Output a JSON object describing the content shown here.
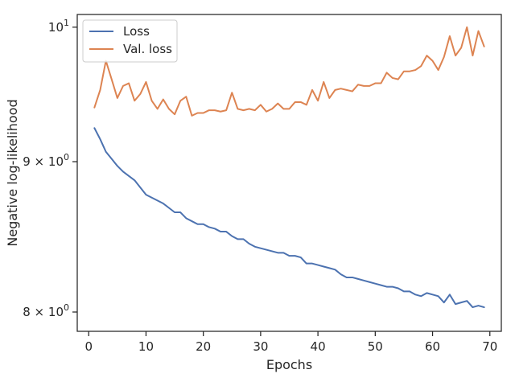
{
  "chart_data": {
    "type": "line",
    "xlabel": "Epochs",
    "ylabel": "Negative log-likelihood",
    "xlim": [
      -2,
      72
    ],
    "ylim": [
      7.88,
      10.1
    ],
    "yscale": "log",
    "x_ticks": [
      0,
      10,
      20,
      30,
      40,
      50,
      60,
      70
    ],
    "y_ticks": [
      {
        "value": 8,
        "mantissa": "8",
        "exponent": "0"
      },
      {
        "value": 9,
        "mantissa": "9",
        "exponent": "0"
      },
      {
        "value": 10,
        "mantissa": "10",
        "exponent": "1"
      }
    ],
    "grid": false,
    "legend_position": "top-left",
    "x": [
      1,
      2,
      3,
      4,
      5,
      6,
      7,
      8,
      9,
      10,
      11,
      12,
      13,
      14,
      15,
      16,
      17,
      18,
      19,
      20,
      21,
      22,
      23,
      24,
      25,
      26,
      27,
      28,
      29,
      30,
      31,
      32,
      33,
      34,
      35,
      36,
      37,
      38,
      39,
      40,
      41,
      42,
      43,
      44,
      45,
      46,
      47,
      48,
      49,
      50,
      51,
      52,
      53,
      54,
      55,
      56,
      57,
      58,
      59,
      60,
      61,
      62,
      63,
      64,
      65,
      66,
      67,
      68,
      69
    ],
    "series": [
      {
        "name": "Loss",
        "color": "#4c72b0",
        "values": [
          9.24,
          9.16,
          9.07,
          9.02,
          8.97,
          8.93,
          8.9,
          8.87,
          8.82,
          8.77,
          8.75,
          8.73,
          8.71,
          8.68,
          8.65,
          8.65,
          8.61,
          8.59,
          8.57,
          8.57,
          8.55,
          8.54,
          8.52,
          8.52,
          8.49,
          8.47,
          8.47,
          8.44,
          8.42,
          8.41,
          8.4,
          8.39,
          8.38,
          8.38,
          8.36,
          8.36,
          8.35,
          8.31,
          8.31,
          8.3,
          8.29,
          8.28,
          8.27,
          8.24,
          8.22,
          8.22,
          8.21,
          8.2,
          8.19,
          8.18,
          8.17,
          8.16,
          8.16,
          8.15,
          8.13,
          8.13,
          8.11,
          8.1,
          8.12,
          8.11,
          8.1,
          8.06,
          8.11,
          8.05,
          8.06,
          8.07,
          8.03,
          8.04,
          8.03
        ]
      },
      {
        "name": "Val. loss",
        "color": "#dd8452",
        "values": [
          9.39,
          9.52,
          9.74,
          9.6,
          9.46,
          9.55,
          9.57,
          9.44,
          9.49,
          9.58,
          9.44,
          9.38,
          9.45,
          9.38,
          9.34,
          9.44,
          9.47,
          9.33,
          9.35,
          9.35,
          9.37,
          9.37,
          9.36,
          9.37,
          9.5,
          9.38,
          9.37,
          9.38,
          9.37,
          9.41,
          9.36,
          9.38,
          9.42,
          9.38,
          9.38,
          9.43,
          9.43,
          9.41,
          9.52,
          9.44,
          9.58,
          9.46,
          9.52,
          9.53,
          9.52,
          9.51,
          9.56,
          9.55,
          9.55,
          9.57,
          9.57,
          9.65,
          9.61,
          9.6,
          9.66,
          9.66,
          9.67,
          9.7,
          9.78,
          9.74,
          9.67,
          9.77,
          9.93,
          9.78,
          9.84,
          10.0,
          9.78,
          9.97,
          9.85
        ]
      }
    ]
  }
}
